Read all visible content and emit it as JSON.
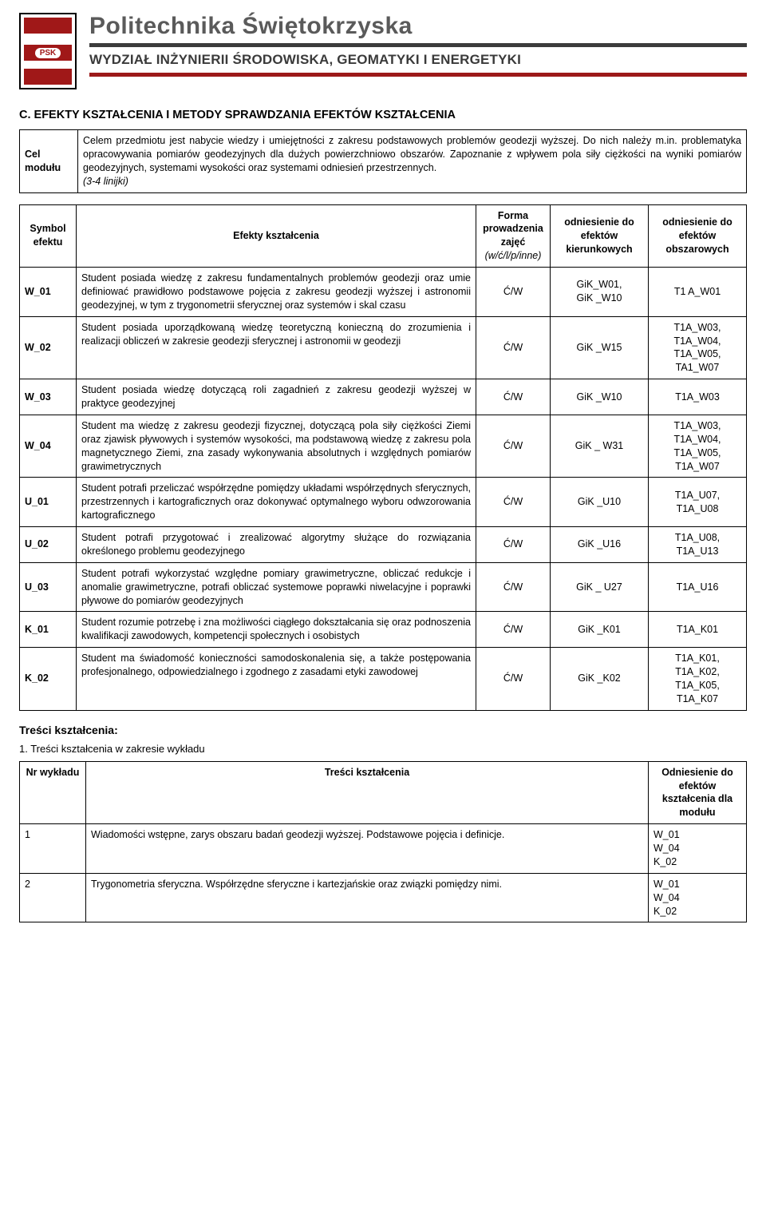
{
  "header": {
    "logo_badge": "PSK",
    "university": "Politechnika Świętokrzyska",
    "faculty": "WYDZIAŁ INŻYNIERII ŚRODOWISKA, GEOMATYKI I ENERGETYKI"
  },
  "section_c_title": "C. EFEKTY KSZTAŁCENIA I METODY SPRAWDZANIA EFEKTÓW KSZTAŁCENIA",
  "cel": {
    "label": "Cel modułu",
    "text": "Celem przedmiotu jest nabycie wiedzy i umiejętności z zakresu podstawowych problemów geodezji wyższej. Do nich należy m.in. problematyka opracowywania pomiarów geodezyjnych dla dużych powierzchniowo obszarów. Zapoznanie z wpływem pola siły ciężkości na wyniki pomiarów geodezyjnych, systemami wysokości oraz systemami odniesień przestrzennych.",
    "note": "(3-4 linijki)"
  },
  "efekty_header": {
    "sym": "Symbol efektu",
    "desc": "Efekty kształcenia",
    "forma_top": "Forma prowadzenia zajęć",
    "forma_sub": "(w/ć/l/p/inne)",
    "kier": "odniesienie do efektów kierunkowych",
    "obsz": "odniesienie do efektów obszarowych"
  },
  "efekty": [
    {
      "sym": "W_01",
      "desc": "Student posiada wiedzę z zakresu fundamentalnych problemów geodezji oraz umie definiować prawidłowo podstawowe pojęcia z zakresu geodezji wyższej i astronomii geodezyjnej, w tym z trygonometrii sferycznej oraz systemów i skal czasu",
      "forma": "Ć/W",
      "kier": "GiK_W01,\nGiK _W10",
      "obsz": "T1 A_W01"
    },
    {
      "sym": "W_02",
      "desc": "Student posiada uporządkowaną wiedzę teoretyczną konieczną do zrozumienia i realizacji obliczeń w zakresie geodezji sferycznej i astronomii w geodezji",
      "forma": "Ć/W",
      "kier": "GiK _W15",
      "obsz": "T1A_W03,\nT1A_W04,\nT1A_W05,\nTA1_W07"
    },
    {
      "sym": "W_03",
      "desc": "Student posiada wiedzę dotyczącą roli zagadnień z zakresu geodezji wyższej w praktyce geodezyjnej",
      "forma": "Ć/W",
      "kier": "GiK _W10",
      "obsz": "T1A_W03"
    },
    {
      "sym": "W_04",
      "desc": "Student ma wiedzę z zakresu geodezji fizycznej, dotyczącą pola siły ciężkości Ziemi oraz zjawisk pływowych i systemów wysokości, ma podstawową wiedzę z zakresu pola magnetycznego Ziemi, zna zasady wykonywania absolutnych i względnych pomiarów grawimetrycznych",
      "forma": "Ć/W",
      "kier": "GiK _ W31",
      "obsz": "T1A_W03,\nT1A_W04,\nT1A_W05,\nT1A_W07"
    },
    {
      "sym": "U_01",
      "desc": "Student potrafi przeliczać współrzędne pomiędzy układami współrzędnych sferycznych, przestrzennych i kartograficznych oraz dokonywać optymalnego wyboru odwzorowania kartograficznego",
      "forma": "Ć/W",
      "kier": "GiK _U10",
      "obsz": "T1A_U07,\nT1A_U08"
    },
    {
      "sym": "U_02",
      "desc": "Student potrafi przygotować i zrealizować algorytmy służące do rozwiązania określonego problemu geodezyjnego",
      "forma": "Ć/W",
      "kier": "GiK _U16",
      "obsz": "T1A_U08,\nT1A_U13"
    },
    {
      "sym": "U_03",
      "desc": "Student potrafi wykorzystać względne pomiary grawimetryczne, obliczać redukcje i anomalie grawimetryczne, potrafi obliczać systemowe poprawki niwelacyjne i poprawki pływowe do pomiarów geodezyjnych",
      "forma": "Ć/W",
      "kier": "GiK _ U27",
      "obsz": "T1A_U16"
    },
    {
      "sym": "K_01",
      "desc": "Student rozumie potrzebę i zna możliwości ciągłego dokształcania się oraz podnoszenia kwalifikacji zawodowych, kompetencji społecznych i osobistych",
      "forma": "Ć/W",
      "kier": "GiK _K01",
      "obsz": "T1A_K01"
    },
    {
      "sym": "K_02",
      "desc": "Student ma świadomość konieczności samodoskonalenia się, a także postępowania profesjonalnego, odpowiedzialnego i zgodnego z zasadami etyki zawodowej",
      "forma": "Ć/W",
      "kier": "GiK _K02",
      "obsz": "T1A_K01,\nT1A_K02,\nT1A_K05,\nT1A_K07"
    }
  ],
  "tresci_title": "Treści kształcenia:",
  "tresci_intro": "1.   Treści kształcenia w zakresie wykładu",
  "tresci_header": {
    "nr": "Nr wykładu",
    "desc": "Treści kształcenia",
    "od": "Odniesienie do efektów kształcenia dla modułu"
  },
  "tresci": [
    {
      "nr": "1",
      "desc": "Wiadomości wstępne, zarys obszaru badań geodezji wyższej. Podstawowe pojęcia i definicje.",
      "od": "W_01\nW_04\nK_02"
    },
    {
      "nr": "2",
      "desc": "Trygonometria sferyczna. Współrzędne sferyczne i kartezjańskie oraz związki pomiędzy nimi.",
      "od": "W_01\nW_04\nK_02"
    }
  ],
  "colors": {
    "text": "#000000",
    "header_gray": "#5a5a5a",
    "hr_dark": "#3c3c3c",
    "hr_red": "#9c1a1a",
    "logo_red": "#a01818",
    "background": "#ffffff"
  }
}
